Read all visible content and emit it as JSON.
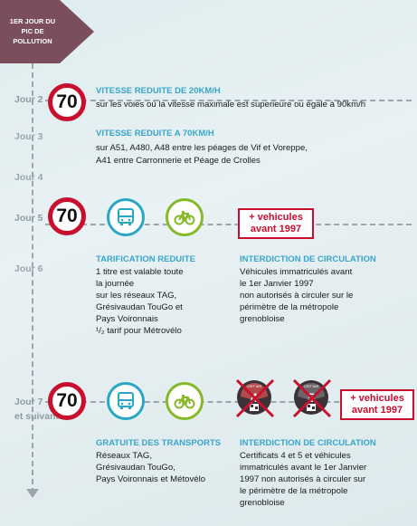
{
  "header": {
    "label": "1er JOUR DU PIC DE POLLUTION",
    "color": "#7b4e5e"
  },
  "days": [
    "Jour 2",
    "Jour 3",
    "Jour 4",
    "Jour 5",
    "Jour 6",
    "Jour 7",
    "et suivants"
  ],
  "sign_value": "70",
  "jour2": {
    "title": "VITESSE REDUITE DE 20KM/H",
    "text": "sur les voies où la vitesse maximale est superieure ou égale à 90km/h"
  },
  "jour3": {
    "title": "VITESSE REDUITE A 70KM/H",
    "line1": "sur A51, A480, A48 entre les péages de Vif et Voreppe,",
    "line2": "A41 entre Carronnerie et Péage de Crolles"
  },
  "extra_vehicles": {
    "line1": "+ vehicules",
    "line2": "avant 1997"
  },
  "jour6": {
    "tarif_title": "TARIFICATION REDUITE",
    "tarif_lines": [
      "1 titre est valable toute",
      "la journée",
      "sur les réseaux TAG,",
      "Grésivaudan TouGo et",
      "Pays Voironnais",
      "¹/₂ tarif pour Métrovélo"
    ],
    "interdiction_title": "INTERDICTION DE CIRCULATION",
    "interdiction_lines": [
      "Véhicules immatriculés avant",
      "le 1er Janvier 1997",
      "non autorisés à circuler sur le",
      "périmètre de la métropole",
      "grenobloise"
    ]
  },
  "jour7": {
    "gratuite_title": "GRATUITE DES TRANSPORTS",
    "gratuite_lines": [
      "Réseaux TAG,",
      "Grésivaudan TouGo,",
      "Pays Voironnais et Métovélo"
    ],
    "interdiction_title": "INTERDICTION DE CIRCULATION",
    "interdiction_lines": [
      "Certificats 4 et 5  et véhicules",
      "immatriculés avant le 1er Janvier",
      "1997 non autorisés à circuler sur",
      "le périmètre de la métropole",
      "grenobloise"
    ]
  },
  "stickers": [
    {
      "label": "CRIT'AIR",
      "number": "4"
    },
    {
      "label": "CRIT'AIR",
      "number": "5"
    }
  ],
  "icons": [
    "speed-limit-70-icon",
    "bus-icon",
    "bicycle-icon",
    "critair-sticker-icon"
  ],
  "colors": {
    "red": "#c8102e",
    "blue": "#39a5cc",
    "green": "#86b928",
    "teal": "#2aa7c3"
  }
}
